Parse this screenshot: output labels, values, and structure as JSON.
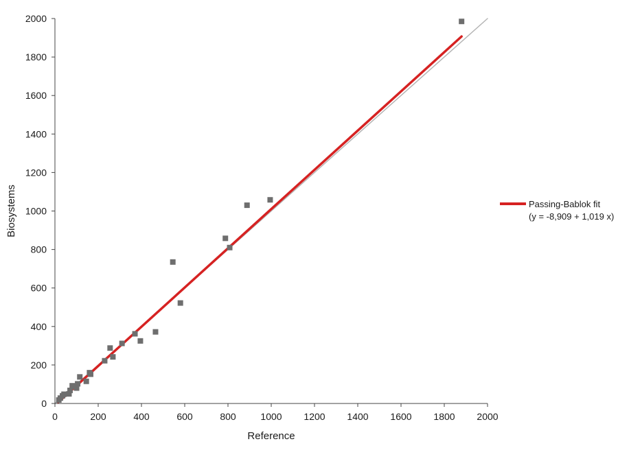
{
  "chart_data": {
    "type": "scatter",
    "title": "",
    "xlabel": "Reference",
    "ylabel": "Biosystems",
    "xlim": [
      0,
      2000
    ],
    "ylim": [
      0,
      2000
    ],
    "x_ticks": [
      0,
      200,
      400,
      600,
      800,
      1000,
      1200,
      1400,
      1600,
      1800,
      2000
    ],
    "y_ticks": [
      0,
      200,
      400,
      600,
      800,
      1000,
      1200,
      1400,
      1600,
      1800,
      2000
    ],
    "grid": false,
    "legend_position": "right",
    "series": [
      {
        "kind": "points",
        "color": "#6e6e6e",
        "marker": "square",
        "points": [
          {
            "x": 18,
            "y": 18
          },
          {
            "x": 25,
            "y": 28
          },
          {
            "x": 35,
            "y": 40
          },
          {
            "x": 42,
            "y": 48
          },
          {
            "x": 65,
            "y": 50
          },
          {
            "x": 70,
            "y": 68
          },
          {
            "x": 80,
            "y": 92
          },
          {
            "x": 95,
            "y": 88
          },
          {
            "x": 100,
            "y": 80
          },
          {
            "x": 105,
            "y": 102
          },
          {
            "x": 115,
            "y": 138
          },
          {
            "x": 145,
            "y": 115
          },
          {
            "x": 160,
            "y": 160
          },
          {
            "x": 165,
            "y": 152
          },
          {
            "x": 230,
            "y": 222
          },
          {
            "x": 255,
            "y": 288
          },
          {
            "x": 268,
            "y": 242
          },
          {
            "x": 310,
            "y": 312
          },
          {
            "x": 370,
            "y": 362
          },
          {
            "x": 395,
            "y": 325
          },
          {
            "x": 465,
            "y": 372
          },
          {
            "x": 545,
            "y": 735
          },
          {
            "x": 580,
            "y": 522
          },
          {
            "x": 788,
            "y": 858
          },
          {
            "x": 808,
            "y": 810
          },
          {
            "x": 888,
            "y": 1030
          },
          {
            "x": 995,
            "y": 1058
          },
          {
            "x": 1880,
            "y": 1985
          }
        ]
      },
      {
        "kind": "line",
        "name": "Passing-Bablok fit",
        "legend_text": [
          "Passing-Bablok fit",
          "(y = -8,909 + 1,019 x)"
        ],
        "color": "#d62222",
        "intercept": -8.909,
        "slope": 1.019,
        "x_range": [
          15,
          1880
        ]
      },
      {
        "kind": "line",
        "color": "#b4b4b4",
        "intercept": 0,
        "slope": 1,
        "x_range": [
          0,
          2000
        ]
      }
    ]
  }
}
